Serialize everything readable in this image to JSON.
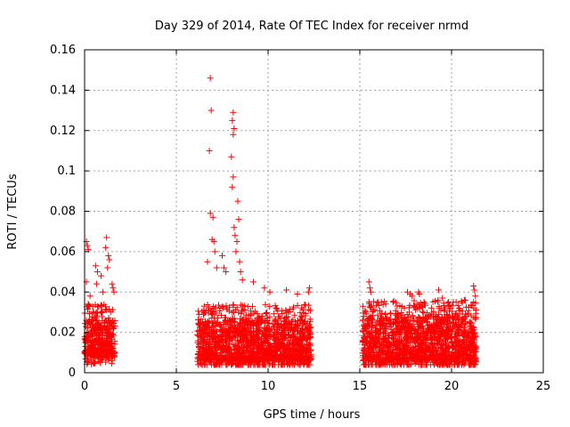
{
  "chart_data": {
    "type": "scatter",
    "title": "Day 329 of 2014, Rate Of TEC Index for receiver nrmd",
    "xlabel": "GPS time / hours",
    "ylabel": "ROTI / TECUs",
    "xlim": [
      0,
      25
    ],
    "ylim": [
      0,
      0.16
    ],
    "x_ticks": [
      0,
      5,
      10,
      15,
      20,
      25
    ],
    "x_tick_labels": [
      "0",
      "5",
      "10",
      "15",
      "20",
      "25"
    ],
    "y_ticks": [
      0,
      0.02,
      0.04,
      0.06,
      0.08,
      0.1,
      0.12,
      0.14,
      0.16
    ],
    "y_tick_labels": [
      "0",
      "0.02",
      "0.04",
      "0.06",
      "0.08",
      "0.1",
      "0.12",
      "0.14",
      "0.16"
    ],
    "grid": true,
    "marker": "+",
    "color": "#ff0000",
    "series": [
      {
        "name": "ROTI",
        "segments": [
          {
            "x_range": [
              0.0,
              1.65
            ],
            "baseline_range": [
              0.008,
              0.026
            ]
          },
          {
            "x_range": [
              6.15,
              12.35
            ],
            "baseline_range": [
              0.006,
              0.026
            ]
          },
          {
            "x_range": [
              15.15,
              21.35
            ],
            "baseline_range": [
              0.006,
              0.028
            ]
          }
        ],
        "highlighted_points": [
          [
            0.1,
            0.065
          ],
          [
            0.15,
            0.063
          ],
          [
            0.2,
            0.061
          ],
          [
            0.1,
            0.045
          ],
          [
            0.3,
            0.038
          ],
          [
            0.6,
            0.053
          ],
          [
            0.7,
            0.05
          ],
          [
            0.65,
            0.044
          ],
          [
            0.9,
            0.048
          ],
          [
            1.0,
            0.04
          ],
          [
            1.2,
            0.067
          ],
          [
            1.15,
            0.062
          ],
          [
            1.3,
            0.058
          ],
          [
            1.35,
            0.056
          ],
          [
            1.25,
            0.052
          ],
          [
            1.5,
            0.044
          ],
          [
            1.55,
            0.042
          ],
          [
            1.6,
            0.04
          ],
          [
            6.85,
            0.146
          ],
          [
            6.9,
            0.13
          ],
          [
            6.8,
            0.11
          ],
          [
            6.85,
            0.079
          ],
          [
            7.0,
            0.077
          ],
          [
            6.95,
            0.066
          ],
          [
            7.05,
            0.065
          ],
          [
            7.1,
            0.06
          ],
          [
            6.7,
            0.055
          ],
          [
            7.2,
            0.052
          ],
          [
            7.5,
            0.058
          ],
          [
            7.6,
            0.052
          ],
          [
            7.7,
            0.05
          ],
          [
            8.1,
            0.129
          ],
          [
            8.05,
            0.125
          ],
          [
            8.15,
            0.121
          ],
          [
            8.1,
            0.118
          ],
          [
            8.0,
            0.107
          ],
          [
            8.1,
            0.097
          ],
          [
            8.05,
            0.092
          ],
          [
            8.35,
            0.085
          ],
          [
            8.4,
            0.076
          ],
          [
            8.15,
            0.072
          ],
          [
            8.2,
            0.068
          ],
          [
            8.3,
            0.065
          ],
          [
            8.25,
            0.06
          ],
          [
            8.45,
            0.055
          ],
          [
            8.5,
            0.05
          ],
          [
            8.6,
            0.046
          ],
          [
            9.2,
            0.045
          ],
          [
            9.8,
            0.042
          ],
          [
            10.1,
            0.04
          ],
          [
            11.0,
            0.041
          ],
          [
            11.6,
            0.039
          ],
          [
            12.25,
            0.042
          ],
          [
            12.2,
            0.04
          ],
          [
            15.5,
            0.045
          ],
          [
            15.55,
            0.042
          ],
          [
            15.6,
            0.04
          ],
          [
            15.5,
            0.035
          ],
          [
            15.65,
            0.033
          ],
          [
            17.6,
            0.04
          ],
          [
            17.75,
            0.039
          ],
          [
            17.85,
            0.038
          ],
          [
            18.2,
            0.04
          ],
          [
            18.25,
            0.039
          ],
          [
            18.5,
            0.035
          ],
          [
            19.3,
            0.041
          ],
          [
            19.5,
            0.037
          ],
          [
            20.1,
            0.035
          ],
          [
            20.7,
            0.036
          ],
          [
            21.2,
            0.043
          ],
          [
            21.25,
            0.041
          ],
          [
            21.3,
            0.038
          ],
          [
            21.2,
            0.035
          ]
        ]
      }
    ]
  }
}
